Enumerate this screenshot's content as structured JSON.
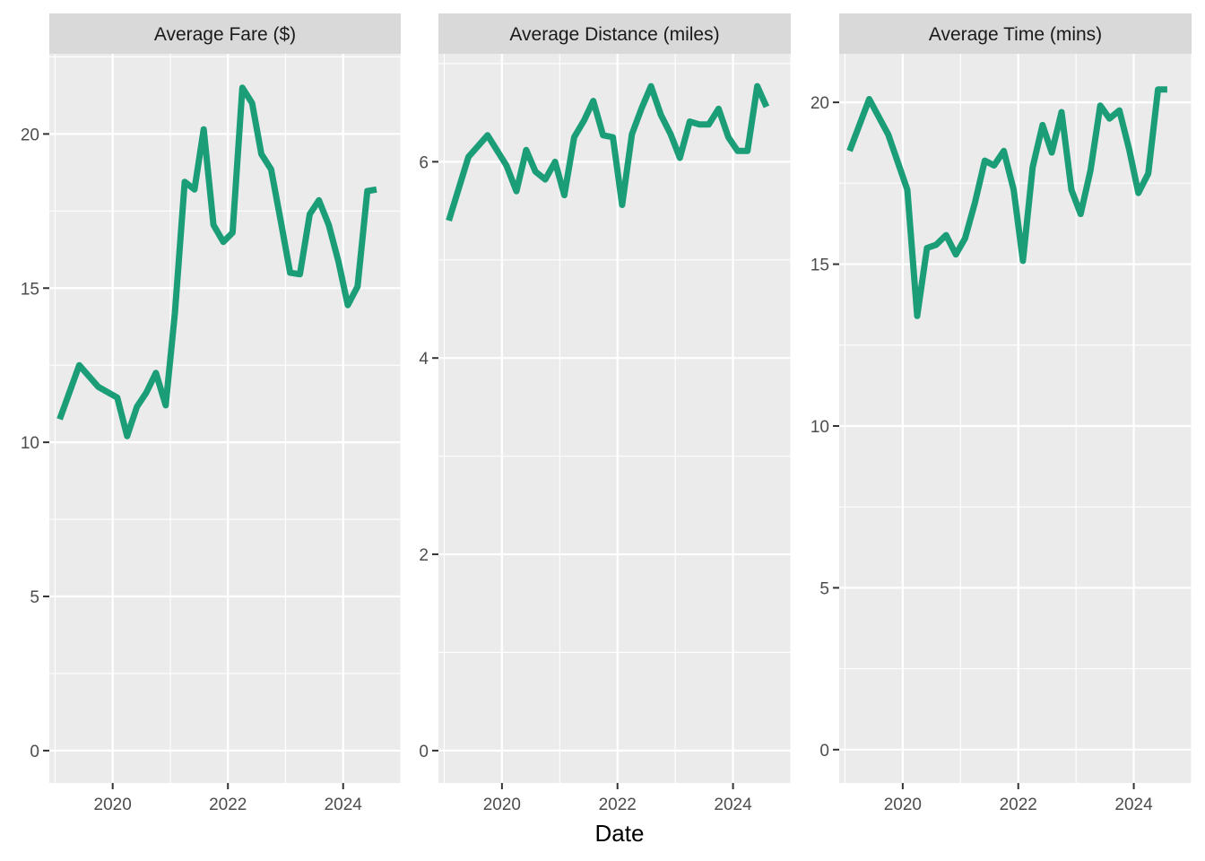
{
  "colors": {
    "line": "#1b9e77",
    "panel_bg": "#ebebeb",
    "strip_bg": "#d9d9d9",
    "grid": "#ffffff"
  },
  "chart_data": {
    "type": "line",
    "facet": "free_y",
    "xlabel": "Date",
    "x_ticks": [
      2020,
      2022,
      2024
    ],
    "x_range": [
      2018.9,
      2025.0
    ],
    "x": [
      2019.08,
      2019.42,
      2019.75,
      2020.08,
      2020.25,
      2020.42,
      2020.58,
      2020.75,
      2020.92,
      2021.08,
      2021.25,
      2021.42,
      2021.58,
      2021.75,
      2021.92,
      2022.08,
      2022.25,
      2022.42,
      2022.58,
      2022.75,
      2022.92,
      2023.08,
      2023.25,
      2023.42,
      2023.58,
      2023.75,
      2023.92,
      2024.08,
      2024.25,
      2024.42,
      2024.58
    ],
    "panels": [
      {
        "title": "Average Fare ($)",
        "y_ticks": [
          0,
          5,
          10,
          15,
          20
        ],
        "y_range": [
          -1.05,
          22.6
        ],
        "values": [
          10.75,
          12.5,
          11.8,
          11.45,
          10.2,
          11.15,
          11.6,
          12.25,
          11.2,
          14.2,
          18.45,
          18.2,
          20.15,
          17.05,
          16.5,
          16.8,
          21.5,
          21.0,
          19.35,
          18.85,
          17.15,
          15.5,
          15.45,
          17.4,
          17.85,
          17.05,
          15.85,
          14.45,
          15.05,
          18.15,
          18.2
        ]
      },
      {
        "title": "Average Distance (miles)",
        "y_ticks": [
          0,
          2,
          4,
          6
        ],
        "y_range": [
          -0.33,
          7.1
        ],
        "values": [
          5.4,
          6.05,
          6.27,
          5.96,
          5.7,
          6.12,
          5.9,
          5.82,
          6.0,
          5.66,
          6.25,
          6.42,
          6.62,
          6.27,
          6.25,
          5.56,
          6.28,
          6.55,
          6.77,
          6.48,
          6.28,
          6.04,
          6.41,
          6.38,
          6.38,
          6.54,
          6.25,
          6.11,
          6.11,
          6.77,
          6.56
        ]
      },
      {
        "title": "Average Time (mins)",
        "y_ticks": [
          0,
          5,
          10,
          15,
          20
        ],
        "y_range": [
          -1.03,
          21.5
        ],
        "values": [
          18.5,
          20.1,
          19.0,
          17.3,
          13.4,
          15.5,
          15.6,
          15.9,
          15.3,
          15.8,
          16.9,
          18.2,
          18.05,
          18.5,
          17.3,
          15.1,
          18.0,
          19.3,
          18.45,
          19.7,
          17.3,
          16.55,
          17.9,
          19.9,
          19.5,
          19.75,
          18.55,
          17.2,
          17.8,
          20.4,
          20.4
        ]
      }
    ]
  }
}
